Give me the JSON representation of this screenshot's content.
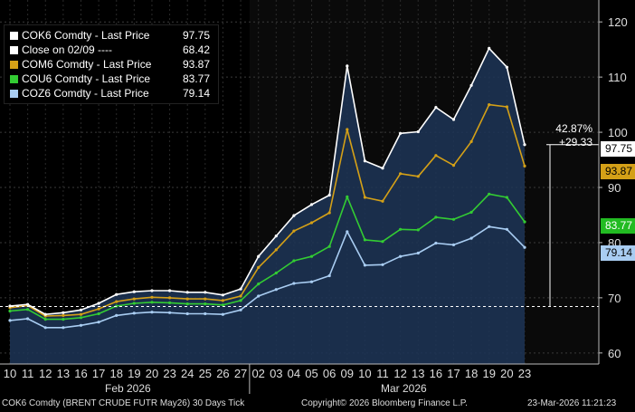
{
  "chart_data": {
    "type": "line",
    "x": [
      "10",
      "11",
      "12",
      "13",
      "16",
      "17",
      "18",
      "19",
      "20",
      "23",
      "24",
      "25",
      "26",
      "27",
      "02",
      "03",
      "04",
      "05",
      "06",
      "09",
      "10",
      "11",
      "12",
      "13",
      "16",
      "17",
      "18",
      "19",
      "20",
      "23"
    ],
    "months": [
      "Feb 2026",
      "Mar 2026"
    ],
    "ylim": [
      58,
      122
    ],
    "yticks": [
      60,
      70,
      80,
      90,
      100,
      110,
      120
    ],
    "series": [
      {
        "name": "COK6 Comdty - Last Price",
        "last": "97.75",
        "color": "#ffffff",
        "values": [
          68.5,
          68.8,
          67.0,
          67.3,
          67.8,
          69.0,
          70.6,
          71.1,
          71.3,
          71.3,
          71.0,
          71.0,
          70.5,
          71.6,
          77.5,
          81.2,
          84.9,
          86.9,
          88.6,
          112.0,
          94.8,
          93.5,
          99.8,
          100.1,
          104.5,
          102.3,
          108.5,
          115.2,
          111.8,
          97.75
        ]
      },
      {
        "name": "COM6 Comdty - Last Price",
        "last": "93.87",
        "color": "#d4a017",
        "values": [
          68.2,
          68.6,
          66.7,
          66.8,
          67.0,
          68.0,
          69.3,
          69.8,
          70.1,
          70.0,
          69.8,
          69.8,
          69.5,
          70.3,
          75.5,
          78.7,
          82.1,
          83.6,
          85.4,
          100.5,
          88.2,
          87.5,
          92.5,
          92.0,
          95.8,
          94.0,
          98.3,
          105.0,
          104.6,
          93.87
        ]
      },
      {
        "name": "COU6 Comdty - Last Price",
        "last": "83.77",
        "color": "#33cc33",
        "values": [
          67.6,
          67.9,
          66.1,
          66.1,
          66.4,
          67.1,
          68.5,
          69.0,
          69.2,
          69.1,
          68.9,
          68.9,
          68.7,
          69.5,
          72.5,
          74.5,
          76.7,
          77.5,
          79.3,
          88.3,
          80.5,
          80.2,
          82.4,
          82.3,
          84.6,
          84.2,
          85.5,
          88.8,
          88.2,
          83.77
        ]
      },
      {
        "name": "COZ6 Comdty - Last Price",
        "last": "79.14",
        "color": "#a9cdf2",
        "values": [
          65.9,
          66.2,
          64.6,
          64.6,
          65.0,
          65.6,
          66.8,
          67.2,
          67.4,
          67.3,
          67.1,
          67.1,
          67.0,
          67.8,
          70.3,
          71.5,
          72.6,
          72.9,
          74.0,
          82.0,
          75.9,
          76.0,
          77.5,
          78.1,
          79.9,
          79.6,
          80.8,
          82.9,
          82.4,
          79.14
        ]
      }
    ],
    "reference": {
      "name": "Close on 02/09 ----",
      "value": 68.42,
      "label": "68.42"
    },
    "change": {
      "pct": "42.87%",
      "abs": "+29.33"
    }
  },
  "footer": {
    "left": "COK6 Comdty (BRENT CRUDE FUTR  May26) 30 Days Tick",
    "center": "Copyright© 2026 Bloomberg Finance L.P.",
    "right": "23-Mar-2026 11:21:23"
  }
}
